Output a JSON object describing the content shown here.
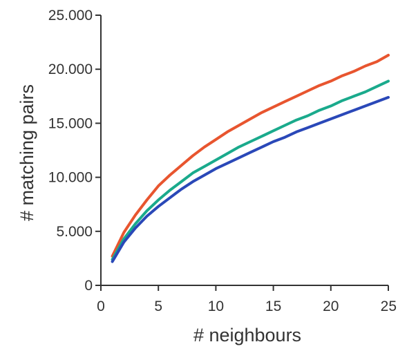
{
  "chart_data": {
    "type": "line",
    "xlabel": "# neighbours",
    "ylabel": "# matching pairs",
    "xlim": [
      0,
      25
    ],
    "ylim": [
      0,
      25000
    ],
    "xticks": [
      0,
      5,
      10,
      15,
      20,
      25
    ],
    "xtick_labels": [
      "0",
      "5",
      "10",
      "15",
      "20",
      "25"
    ],
    "yticks": [
      0,
      5000,
      10000,
      15000,
      20000,
      25000
    ],
    "ytick_labels": [
      "0",
      "5.000",
      "10.000",
      "15.000",
      "20.000",
      "25.000"
    ],
    "grid": false,
    "legend": "none",
    "series": [
      {
        "color": "#e8552f",
        "x": [
          1,
          2,
          3,
          4,
          5,
          6,
          7,
          8,
          9,
          10,
          11,
          12,
          13,
          14,
          15,
          16,
          17,
          18,
          19,
          20,
          21,
          22,
          23,
          24,
          25
        ],
        "values": [
          2700,
          4900,
          6500,
          7900,
          9200,
          10200,
          11100,
          12000,
          12800,
          13500,
          14200,
          14800,
          15400,
          16000,
          16500,
          17000,
          17500,
          18000,
          18500,
          18900,
          19400,
          19800,
          20300,
          20700,
          21300
        ]
      },
      {
        "color": "#1aaa8c",
        "x": [
          1,
          2,
          3,
          4,
          5,
          6,
          7,
          8,
          9,
          10,
          11,
          12,
          13,
          14,
          15,
          16,
          17,
          18,
          19,
          20,
          21,
          22,
          23,
          24,
          25
        ],
        "values": [
          2400,
          4300,
          5700,
          6900,
          7900,
          8800,
          9600,
          10400,
          11000,
          11600,
          12200,
          12800,
          13300,
          13800,
          14300,
          14800,
          15300,
          15700,
          16200,
          16600,
          17100,
          17500,
          17900,
          18400,
          18900
        ]
      },
      {
        "color": "#2a48b8",
        "x": [
          1,
          2,
          3,
          4,
          5,
          6,
          7,
          8,
          9,
          10,
          11,
          12,
          13,
          14,
          15,
          16,
          17,
          18,
          19,
          20,
          21,
          22,
          23,
          24,
          25
        ],
        "values": [
          2200,
          4000,
          5300,
          6400,
          7300,
          8100,
          8900,
          9600,
          10200,
          10800,
          11300,
          11800,
          12300,
          12800,
          13300,
          13700,
          14200,
          14600,
          15000,
          15400,
          15800,
          16200,
          16600,
          17000,
          17400
        ]
      }
    ]
  }
}
